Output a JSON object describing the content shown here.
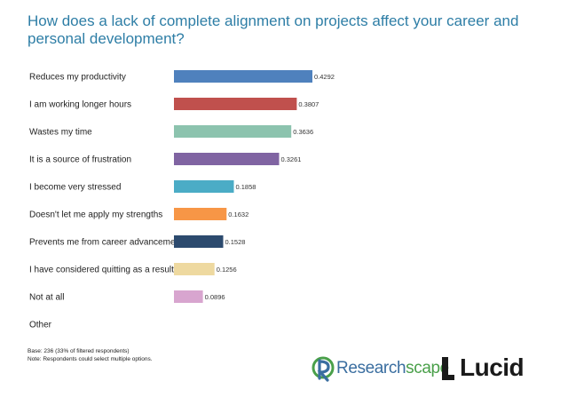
{
  "header": {
    "title": "How does a lack of complete alignment on projects affect your career and personal development?"
  },
  "chart_data": {
    "type": "bar",
    "orientation": "horizontal",
    "title": "How does a lack of complete alignment on projects affect your career and personal development?",
    "categories": [
      "Reduces my productivity",
      "I am working longer hours",
      "Wastes my time",
      "It is a source of frustration",
      "I become very stressed",
      "Doesn't let me apply my strengths",
      "Prevents me from career advancement",
      "I have considered quitting as a result",
      "Not at all",
      "Other"
    ],
    "values": [
      0.4292,
      0.3807,
      0.3636,
      0.3261,
      0.1858,
      0.1632,
      0.1528,
      0.1256,
      0.0896,
      null
    ],
    "value_labels": [
      "0.4292",
      "0.3807",
      "0.3636",
      "0.3261",
      "0.1858",
      "0.1632",
      "0.1528",
      "0.1256",
      "0.0896",
      ""
    ],
    "colors": [
      "#4f81bd",
      "#c0504d",
      "#8cc3ae",
      "#8064a2",
      "#4bacc6",
      "#f79646",
      "#2c4a6e",
      "#eed9a0",
      "#d8a5cf",
      "#ffffff"
    ],
    "xlim": [
      0,
      0.4292
    ],
    "grid": false,
    "legend": "none"
  },
  "footnote": {
    "line1": "Base: 236 (33% of filtered respondents)",
    "line2": "Note: Respondents could select multiple options."
  },
  "logos": {
    "researchscape_prefix": "Research",
    "researchscape_suffix": "scape",
    "lucid": "Lucid",
    "colors": {
      "researchscape_blue": "#3a6ea0",
      "researchscape_green": "#4aa04a",
      "lucid": "#1a1a1a"
    }
  }
}
